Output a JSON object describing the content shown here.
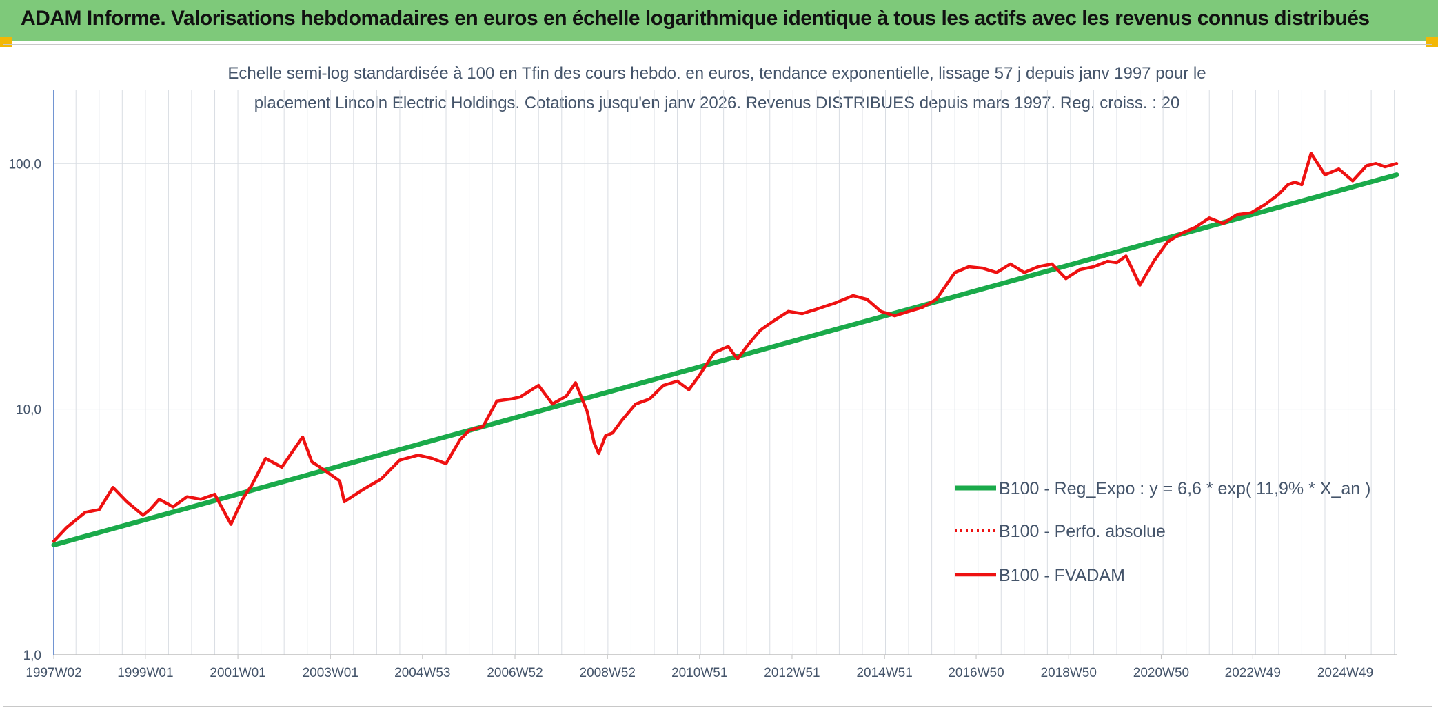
{
  "header": {
    "title": "ADAM Informe. Valorisations hebdomadaires en euros en échelle logarithmique identique à tous les actifs avec les revenus connus distribués"
  },
  "colors": {
    "header_bg": "#7ec97a",
    "regression": "#1aaa4a",
    "fvadam": "#ee1111",
    "perfo": "#ee1111",
    "corner": "#f2b705",
    "grid": "#d9dde3",
    "text": "#44546a"
  },
  "chart_data": {
    "type": "line",
    "title": "Echelle semi-log standardisée à 100 en Tfin des cours hebdo. en euros, tendance exponentielle, lissage 57 j depuis janv 1997 pour le placement Lincoln Electric Holdings. Cotations jusqu'en janv 2026. Revenus DISTRIBUES depuis mars 1997. Reg. croiss. : 20",
    "title_lines": [
      "Echelle semi-log standardisée à 100 en Tfin des cours hebdo. en euros, tendance exponentielle, lissage 57 j depuis janv 1997 pour le",
      "placement Lincoln Electric Holdings. Cotations jusqu'en janv 2026. Revenus DISTRIBUES depuis mars 1997. Reg. croiss. : 20"
    ],
    "y_scale": "log",
    "ylim": [
      1,
      200
    ],
    "y_ticks": [
      {
        "value": 1,
        "label": "1,0"
      },
      {
        "value": 10,
        "label": "10,0"
      },
      {
        "value": 100,
        "label": "100,0"
      }
    ],
    "xlim": [
      1997.02,
      2026.05
    ],
    "x_ticks": [
      {
        "value": 1997.02,
        "label": "1997W02"
      },
      {
        "value": 1999.0,
        "label": "1999W01"
      },
      {
        "value": 2001.0,
        "label": "2001W01"
      },
      {
        "value": 2003.0,
        "label": "2003W01"
      },
      {
        "value": 2004.99,
        "label": "2004W53"
      },
      {
        "value": 2006.99,
        "label": "2006W52"
      },
      {
        "value": 2008.99,
        "label": "2008W52"
      },
      {
        "value": 2010.98,
        "label": "2010W51"
      },
      {
        "value": 2012.98,
        "label": "2012W51"
      },
      {
        "value": 2014.98,
        "label": "2014W51"
      },
      {
        "value": 2016.96,
        "label": "2016W50"
      },
      {
        "value": 2018.96,
        "label": "2018W50"
      },
      {
        "value": 2020.96,
        "label": "2020W50"
      },
      {
        "value": 2022.94,
        "label": "2022W49"
      },
      {
        "value": 2024.94,
        "label": "2024W49"
      }
    ],
    "grid": true,
    "legend_position": "right",
    "series": [
      {
        "name": "B100 - Reg_Expo : y = 6,6 * exp( 11,9% *  X_an )",
        "style": "solid-thick",
        "x": [
          1997.02,
          2026.05
        ],
        "y": [
          2.8,
          90
        ]
      },
      {
        "name": "B100 - Perfo. absolue",
        "style": "dotted",
        "x": [],
        "y": []
      },
      {
        "name": "B100 - FVADAM",
        "style": "solid",
        "x": [
          1997.02,
          1997.3,
          1997.7,
          1998.0,
          1998.3,
          1998.6,
          1998.95,
          1999.1,
          1999.3,
          1999.6,
          1999.9,
          2000.2,
          2000.5,
          2000.85,
          2001.1,
          2001.2,
          2001.3,
          2001.6,
          2001.95,
          2002.2,
          2002.4,
          2002.6,
          2002.9,
          2003.2,
          2003.3,
          2003.7,
          2004.1,
          2004.5,
          2004.9,
          2005.2,
          2005.5,
          2005.8,
          2006.0,
          2006.3,
          2006.6,
          2006.9,
          2007.1,
          2007.5,
          2007.8,
          2008.1,
          2008.3,
          2008.55,
          2008.7,
          2008.8,
          2008.95,
          2009.1,
          2009.3,
          2009.6,
          2009.9,
          2010.2,
          2010.5,
          2010.75,
          2010.95,
          2011.3,
          2011.6,
          2011.8,
          2012.05,
          2012.3,
          2012.6,
          2012.9,
          2013.2,
          2013.5,
          2013.9,
          2014.3,
          2014.6,
          2014.9,
          2015.2,
          2015.5,
          2015.8,
          2016.1,
          2016.5,
          2016.8,
          2017.1,
          2017.4,
          2017.7,
          2018.0,
          2018.3,
          2018.6,
          2018.9,
          2019.2,
          2019.5,
          2019.8,
          2020.0,
          2020.2,
          2020.5,
          2020.8,
          2021.1,
          2021.4,
          2021.7,
          2022.0,
          2022.3,
          2022.6,
          2022.9,
          2023.2,
          2023.5,
          2023.7,
          2023.85,
          2024.0,
          2024.2,
          2024.5,
          2024.8,
          2025.1,
          2025.4,
          2025.6,
          2025.8,
          2026.05
        ],
        "y": [
          2.9,
          3.3,
          3.8,
          3.9,
          4.8,
          4.2,
          3.7,
          3.9,
          4.3,
          4.0,
          4.4,
          4.3,
          4.5,
          3.4,
          4.3,
          4.6,
          4.9,
          6.3,
          5.8,
          6.8,
          7.7,
          6.1,
          5.6,
          5.1,
          4.2,
          4.7,
          5.2,
          6.2,
          6.5,
          6.3,
          6.0,
          7.5,
          8.2,
          8.5,
          10.8,
          11.0,
          11.2,
          12.5,
          10.5,
          11.3,
          12.8,
          9.8,
          7.3,
          6.6,
          7.8,
          8.0,
          9.0,
          10.5,
          11.0,
          12.5,
          13.0,
          12.0,
          13.5,
          17.0,
          18.0,
          16.0,
          18.5,
          21.0,
          23.0,
          25.0,
          24.5,
          25.5,
          27.0,
          29.0,
          28.0,
          25.0,
          24.0,
          25.0,
          26.0,
          28.0,
          36.0,
          38.0,
          37.5,
          36.0,
          39.0,
          36.0,
          38.0,
          39.0,
          34.0,
          37.0,
          38.0,
          40.0,
          39.5,
          42.0,
          32.0,
          40.0,
          48.0,
          52.0,
          55.0,
          60.0,
          57.0,
          62.0,
          63.0,
          68.0,
          75.0,
          82.0,
          84.0,
          82.0,
          110.0,
          90.0,
          95.0,
          85.0,
          98.0,
          100.0,
          97.0,
          100.0
        ]
      }
    ]
  }
}
